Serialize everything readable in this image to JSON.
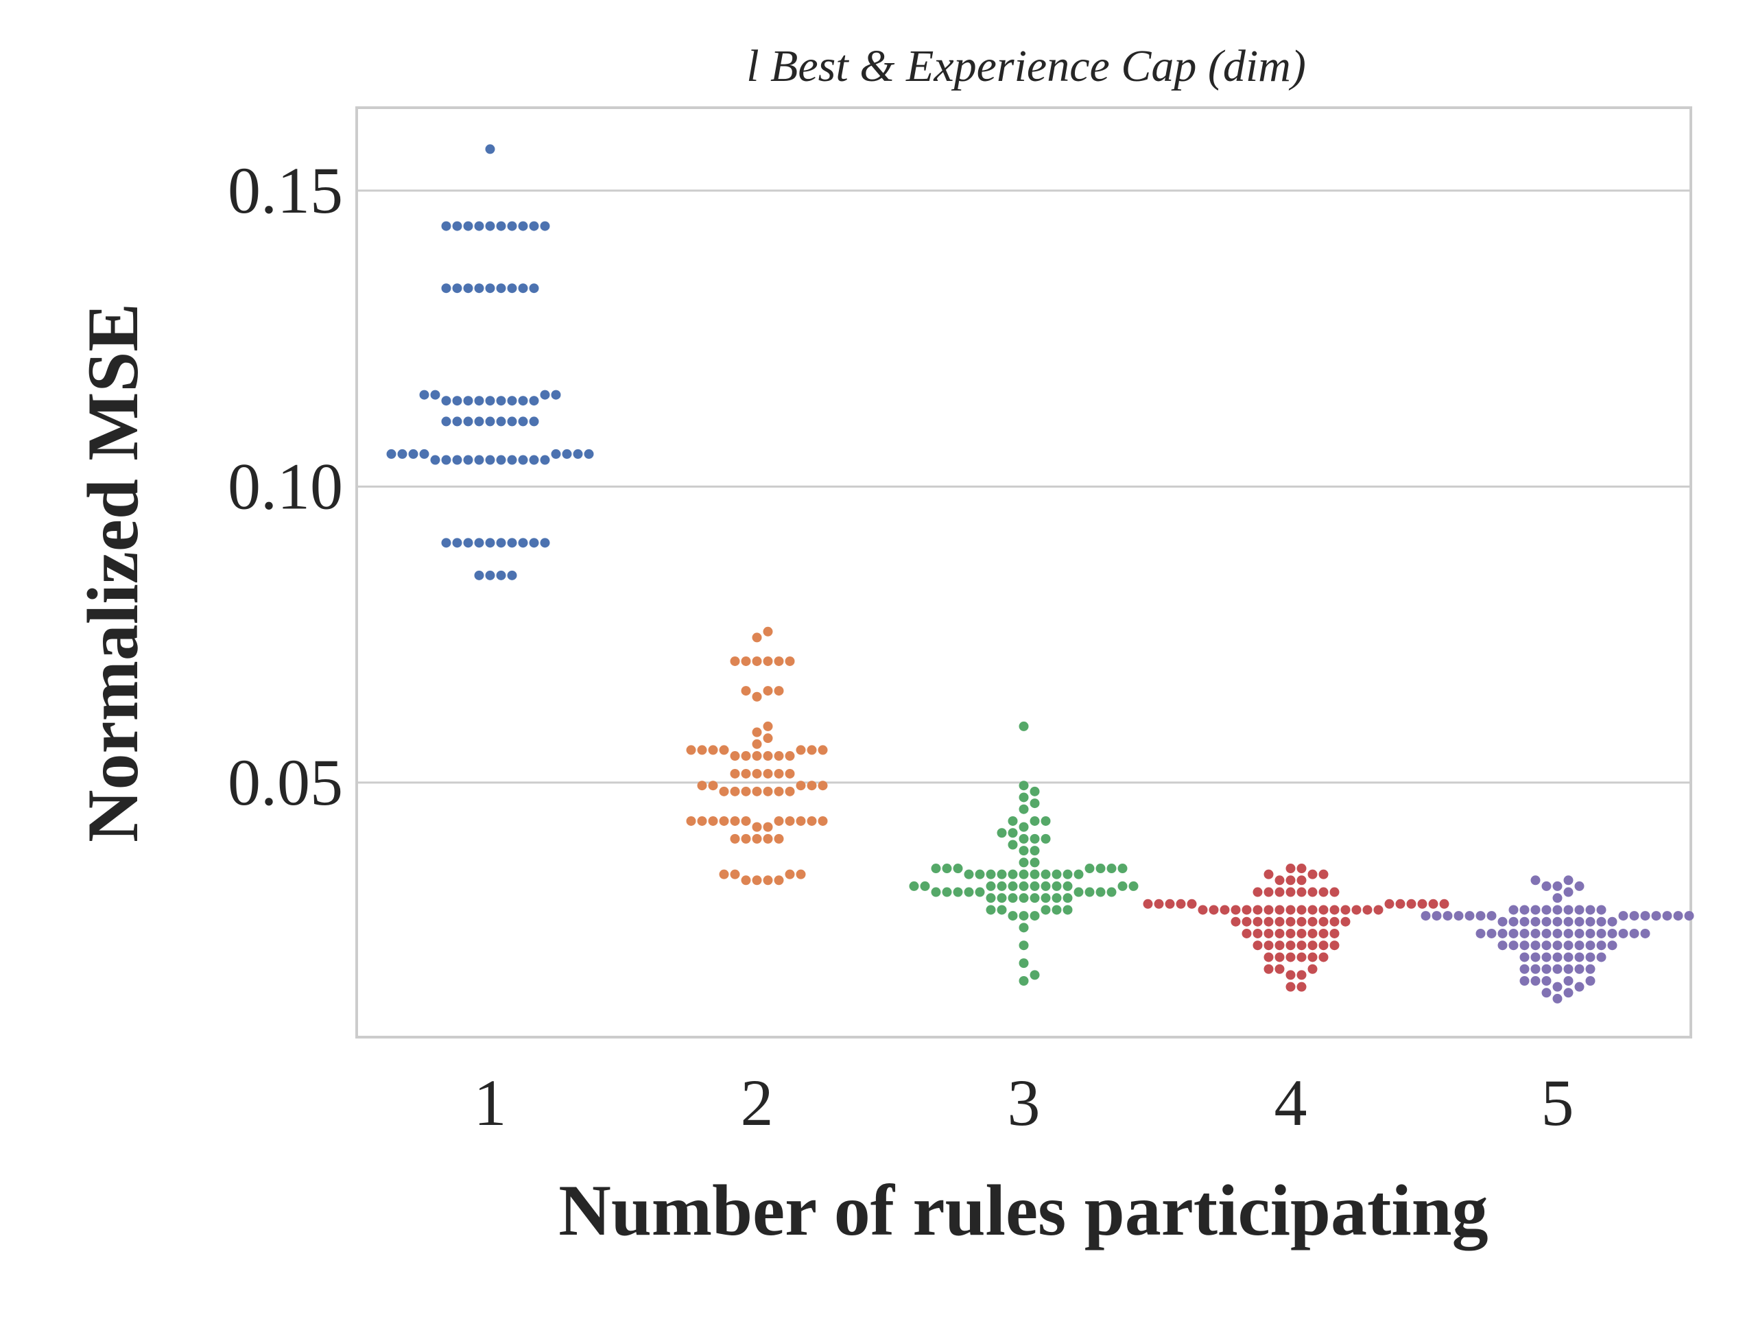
{
  "chart_data": {
    "type": "scatter",
    "subtype": "swarm",
    "title": "l Best & Experience Cap (dim)",
    "xlabel": "Number of rules participating",
    "ylabel": "Normalized MSE",
    "categories": [
      "1",
      "2",
      "3",
      "4",
      "5"
    ],
    "ylim": [
      0.007,
      0.164
    ],
    "yticks": [
      0.05,
      0.1,
      0.15
    ],
    "ytick_labels": [
      "0.05",
      "0.10",
      "0.15"
    ],
    "grid": "horizontal",
    "legend": "none",
    "colors": [
      "#4c72b0",
      "#dd8452",
      "#55a868",
      "#c44e52",
      "#8172b3"
    ],
    "groups": [
      {
        "category": "1",
        "values": [
          0.157,
          0.144,
          0.144,
          0.144,
          0.144,
          0.144,
          0.144,
          0.144,
          0.144,
          0.144,
          0.144,
          0.1335,
          0.1335,
          0.1335,
          0.1335,
          0.1335,
          0.1335,
          0.1335,
          0.1335,
          0.1335,
          0.1155,
          0.1155,
          0.1155,
          0.1155,
          0.1145,
          0.1145,
          0.1145,
          0.1145,
          0.1145,
          0.1145,
          0.1145,
          0.1145,
          0.1145,
          0.111,
          0.111,
          0.111,
          0.111,
          0.111,
          0.111,
          0.111,
          0.111,
          0.111,
          0.1055,
          0.1055,
          0.1055,
          0.1055,
          0.1055,
          0.1055,
          0.1055,
          0.1055,
          0.1045,
          0.1045,
          0.1045,
          0.1045,
          0.1045,
          0.1045,
          0.1045,
          0.1045,
          0.1045,
          0.1045,
          0.1045,
          0.0905,
          0.0905,
          0.0905,
          0.0905,
          0.0905,
          0.0905,
          0.0905,
          0.0905,
          0.0905,
          0.0905,
          0.085,
          0.085,
          0.085,
          0.085
        ]
      },
      {
        "category": "2",
        "values": [
          0.0755,
          0.0745,
          0.0705,
          0.0705,
          0.0705,
          0.0705,
          0.0705,
          0.0705,
          0.0655,
          0.0655,
          0.0655,
          0.0645,
          0.0595,
          0.0585,
          0.0575,
          0.0565,
          0.0555,
          0.0555,
          0.0555,
          0.0555,
          0.0555,
          0.0555,
          0.0555,
          0.0545,
          0.0545,
          0.0545,
          0.0545,
          0.0545,
          0.0545,
          0.0515,
          0.0515,
          0.0515,
          0.0515,
          0.0515,
          0.0515,
          0.0495,
          0.0495,
          0.0495,
          0.0495,
          0.0495,
          0.0485,
          0.0485,
          0.0485,
          0.0485,
          0.0485,
          0.0485,
          0.0485,
          0.0435,
          0.0435,
          0.0435,
          0.0435,
          0.0435,
          0.0435,
          0.0435,
          0.0435,
          0.0435,
          0.0435,
          0.0435,
          0.0425,
          0.0425,
          0.0405,
          0.0405,
          0.0405,
          0.0405,
          0.0405,
          0.0345,
          0.0345,
          0.0345,
          0.0345,
          0.0335,
          0.0335,
          0.0335,
          0.0335
        ]
      },
      {
        "category": "3",
        "values": [
          0.0595,
          0.0495,
          0.0485,
          0.0475,
          0.0465,
          0.0455,
          0.0435,
          0.0435,
          0.0435,
          0.0425,
          0.0415,
          0.0415,
          0.0405,
          0.0405,
          0.0405,
          0.0395,
          0.0385,
          0.0385,
          0.0365,
          0.0365,
          0.0355,
          0.0355,
          0.0355,
          0.0355,
          0.0355,
          0.0355,
          0.0355,
          0.0345,
          0.0345,
          0.0345,
          0.0345,
          0.0345,
          0.0345,
          0.0345,
          0.0345,
          0.0345,
          0.0345,
          0.0345,
          0.0325,
          0.0325,
          0.0325,
          0.0325,
          0.0325,
          0.0325,
          0.0325,
          0.0325,
          0.0325,
          0.0325,
          0.0325,
          0.0325,
          0.0315,
          0.0315,
          0.0315,
          0.0315,
          0.0315,
          0.0315,
          0.0315,
          0.0315,
          0.0315,
          0.0305,
          0.0305,
          0.0305,
          0.0305,
          0.0305,
          0.0305,
          0.0305,
          0.0305,
          0.0285,
          0.0285,
          0.0285,
          0.0285,
          0.0285,
          0.0275,
          0.0275,
          0.0275,
          0.0255,
          0.0225,
          0.0195,
          0.0175,
          0.0165
        ]
      },
      {
        "category": "4",
        "values": [
          0.0355,
          0.0355,
          0.0345,
          0.0345,
          0.0345,
          0.0335,
          0.0335,
          0.0335,
          0.0315,
          0.0315,
          0.0315,
          0.0315,
          0.0315,
          0.0315,
          0.0315,
          0.0315,
          0.0295,
          0.0295,
          0.0295,
          0.0295,
          0.0295,
          0.0295,
          0.0295,
          0.0295,
          0.0295,
          0.0295,
          0.0295,
          0.0285,
          0.0285,
          0.0285,
          0.0285,
          0.0285,
          0.0285,
          0.0285,
          0.0285,
          0.0285,
          0.0285,
          0.0285,
          0.0285,
          0.0285,
          0.0285,
          0.0285,
          0.0285,
          0.0285,
          0.0265,
          0.0265,
          0.0265,
          0.0265,
          0.0265,
          0.0265,
          0.0265,
          0.0265,
          0.0265,
          0.0265,
          0.0265,
          0.0245,
          0.0245,
          0.0245,
          0.0245,
          0.0245,
          0.0245,
          0.0245,
          0.0245,
          0.0245,
          0.0225,
          0.0225,
          0.0225,
          0.0225,
          0.0225,
          0.0225,
          0.0225,
          0.0225,
          0.0205,
          0.0205,
          0.0205,
          0.0205,
          0.0205,
          0.0205,
          0.0185,
          0.0185,
          0.0185,
          0.0175,
          0.0175,
          0.0155,
          0.0155
        ]
      },
      {
        "category": "5",
        "values": [
          0.0335,
          0.0335,
          0.0325,
          0.0325,
          0.0325,
          0.0315,
          0.0305,
          0.0285,
          0.0285,
          0.0285,
          0.0285,
          0.0285,
          0.0285,
          0.0285,
          0.0285,
          0.0285,
          0.0275,
          0.0275,
          0.0275,
          0.0275,
          0.0275,
          0.0275,
          0.0275,
          0.0275,
          0.0275,
          0.0275,
          0.0275,
          0.0275,
          0.0275,
          0.0275,
          0.0265,
          0.0265,
          0.0265,
          0.0265,
          0.0265,
          0.0265,
          0.0265,
          0.0265,
          0.0265,
          0.0265,
          0.0265,
          0.0245,
          0.0245,
          0.0245,
          0.0245,
          0.0245,
          0.0245,
          0.0245,
          0.0245,
          0.0245,
          0.0245,
          0.0245,
          0.0245,
          0.0245,
          0.0245,
          0.0245,
          0.0245,
          0.0225,
          0.0225,
          0.0225,
          0.0225,
          0.0225,
          0.0225,
          0.0225,
          0.0225,
          0.0225,
          0.0225,
          0.0225,
          0.0205,
          0.0205,
          0.0205,
          0.0205,
          0.0205,
          0.0205,
          0.0205,
          0.0205,
          0.0185,
          0.0185,
          0.0185,
          0.0185,
          0.0185,
          0.0185,
          0.0185,
          0.0165,
          0.0165,
          0.0165,
          0.0165,
          0.0165,
          0.0155,
          0.0155,
          0.0145,
          0.0145,
          0.0135
        ]
      }
    ]
  }
}
